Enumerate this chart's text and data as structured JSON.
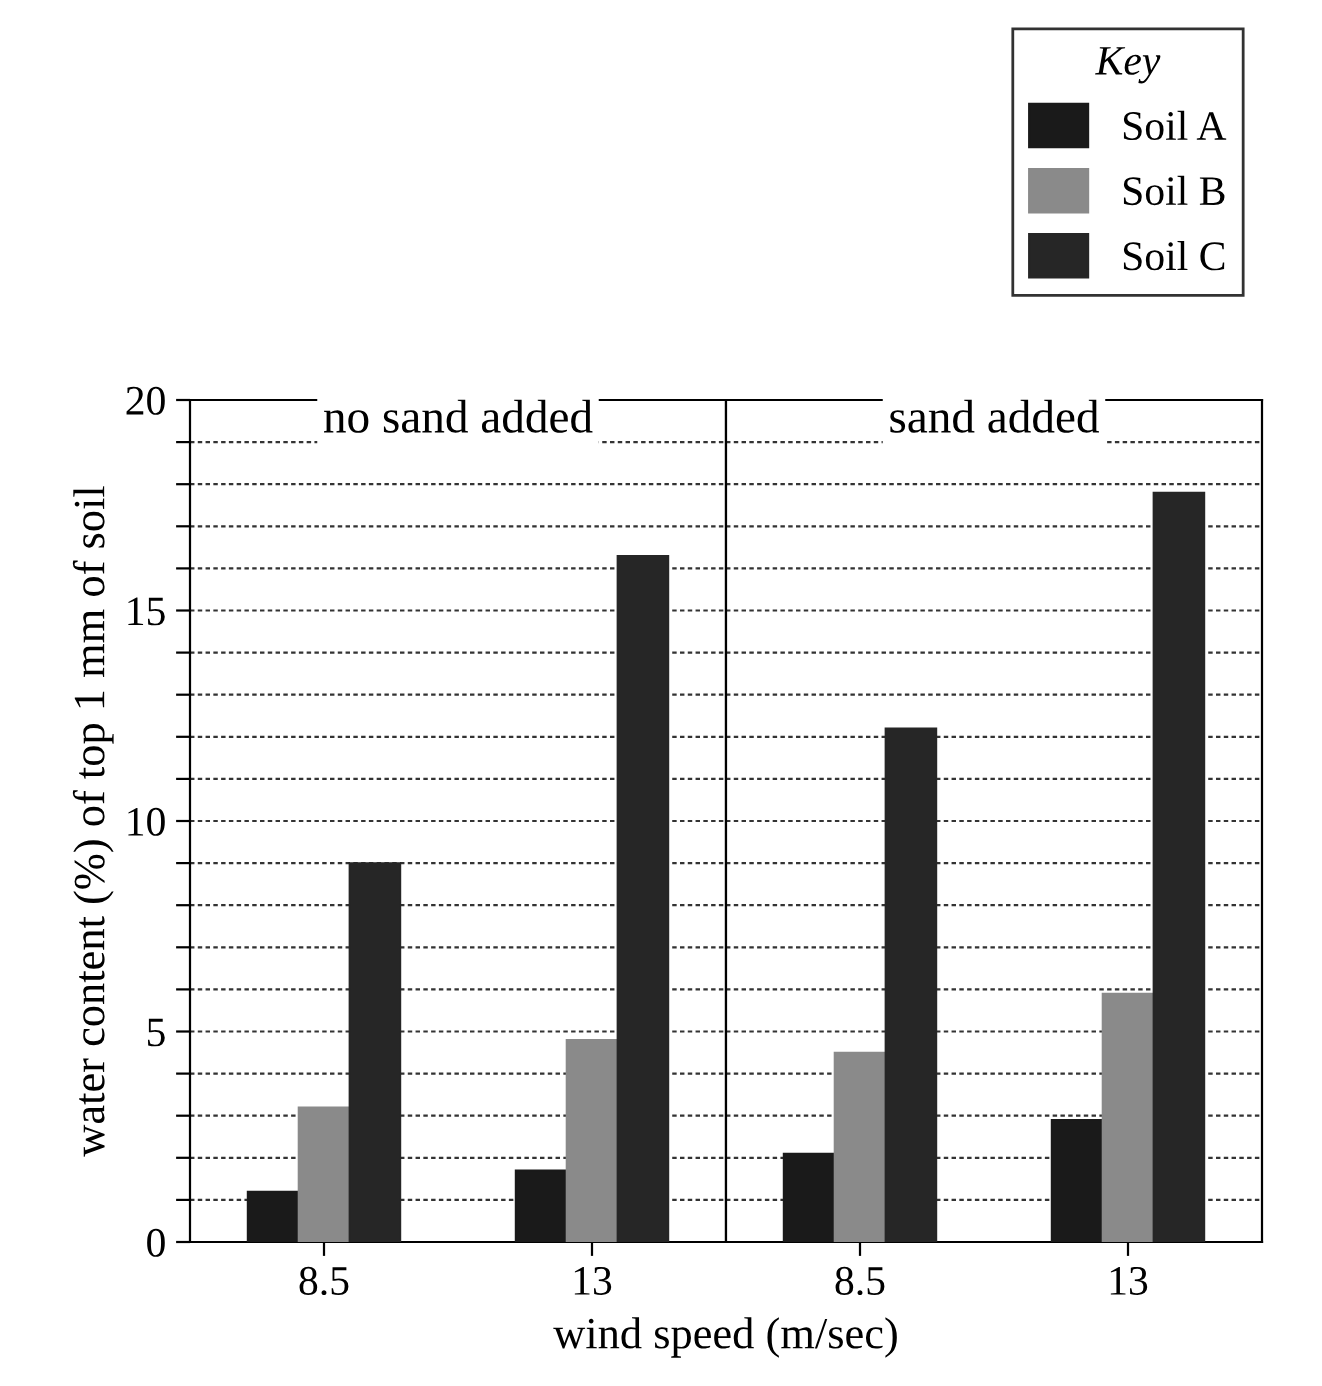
{
  "chart_data": [
    {
      "type": "bar",
      "title": "no sand added",
      "ylabel": "water content (%) of top 1 mm of soil",
      "xlabel": "wind speed (m/sec)",
      "categories": [
        "8.5",
        "13"
      ],
      "series": [
        {
          "name": "Soil A",
          "color": "#1a1a1a",
          "values": [
            1.2,
            1.7
          ]
        },
        {
          "name": "Soil B",
          "color": "#8a8a8a",
          "values": [
            3.2,
            4.8
          ]
        },
        {
          "name": "Soil C",
          "color": "#262626",
          "values": [
            9.0,
            16.3
          ]
        }
      ],
      "ylim": [
        0,
        20
      ],
      "yticks": [
        0,
        {
          "value": 1,
          "label": null
        },
        {
          "value": 2,
          "label": null
        },
        {
          "value": 3,
          "label": null
        },
        {
          "value": 4,
          "label": null
        },
        5,
        {
          "value": 6,
          "label": null
        },
        {
          "value": 7,
          "label": null
        },
        {
          "value": 8,
          "label": null
        },
        {
          "value": 9,
          "label": null
        },
        10,
        {
          "value": 11,
          "label": null
        },
        {
          "value": 12,
          "label": null
        },
        {
          "value": 13,
          "label": null
        },
        {
          "value": 14,
          "label": null
        },
        15,
        {
          "value": 16,
          "label": null
        },
        {
          "value": 17,
          "label": null
        },
        {
          "value": 18,
          "label": null
        },
        {
          "value": 19,
          "label": null
        },
        20
      ],
      "grid": "y",
      "legend": "top right",
      "legend_title": "Key"
    },
    {
      "type": "bar",
      "title": "sand added",
      "categories": [
        "8.5",
        "13"
      ],
      "series": [
        {
          "color": "#1a1a1a",
          "values": [
            2.1,
            2.9
          ]
        },
        {
          "color": "#8a8a8a",
          "values": [
            4.5,
            5.9
          ]
        },
        {
          "color": "#262626",
          "values": [
            12.2,
            17.8
          ]
        }
      ],
      "ylim": [
        0,
        20
      ],
      "yticks": [
        0,
        {
          "value": 1,
          "label": null
        },
        {
          "value": 2,
          "label": null
        },
        {
          "value": 3,
          "label": null
        },
        {
          "value": 4,
          "label": null
        },
        5,
        {
          "value": 6,
          "label": null
        },
        {
          "value": 7,
          "label": null
        },
        {
          "value": 8,
          "label": null
        },
        {
          "value": 9,
          "label": null
        },
        10,
        {
          "value": 11,
          "label": null
        },
        {
          "value": 12,
          "label": null
        },
        {
          "value": 13,
          "label": null
        },
        {
          "value": 14,
          "label": null
        },
        15,
        {
          "value": 16,
          "label": null
        },
        {
          "value": 17,
          "label": null
        },
        {
          "value": 18,
          "label": null
        },
        {
          "value": 19,
          "label": null
        },
        20
      ],
      "grid": "y",
      "tick_labels": "x"
    }
  ]
}
